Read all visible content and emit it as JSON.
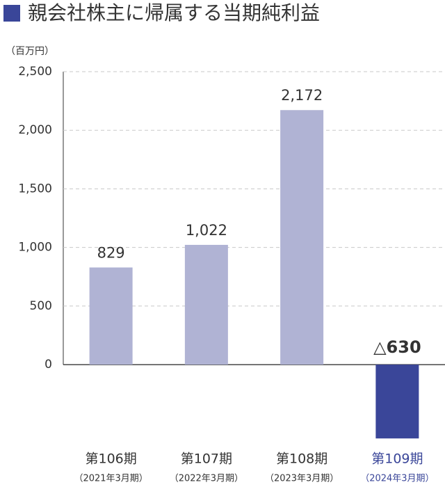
{
  "chart_data": {
    "type": "bar",
    "title": "親会社株主に帰属する当期純利益",
    "unit": "（百万円）",
    "categories": [
      "第106期",
      "第107期",
      "第108期",
      "第109期"
    ],
    "category_periods": [
      "（2021年3月期）",
      "（2022年3月期）",
      "（2023年3月期）",
      "（2024年3月期）"
    ],
    "label_colors": [
      "#333333",
      "#333333",
      "#333333",
      "#3a4699"
    ],
    "values": [
      829,
      1022,
      2172,
      -630
    ],
    "value_labels": [
      "829",
      "1,022",
      "2,172",
      "△630"
    ],
    "colors": [
      "#b0b3d4",
      "#b0b3d4",
      "#b0b3d4",
      "#3a4699"
    ],
    "ylim": [
      -700,
      2500
    ],
    "yticks": [
      0,
      500,
      {
        "value": 1000,
        "label": "1,000"
      },
      {
        "value": 1500,
        "label": "1,500"
      },
      {
        "value": 2000,
        "label": "2,000"
      },
      {
        "value": 2500,
        "label": "2,500"
      }
    ],
    "grid": true
  }
}
